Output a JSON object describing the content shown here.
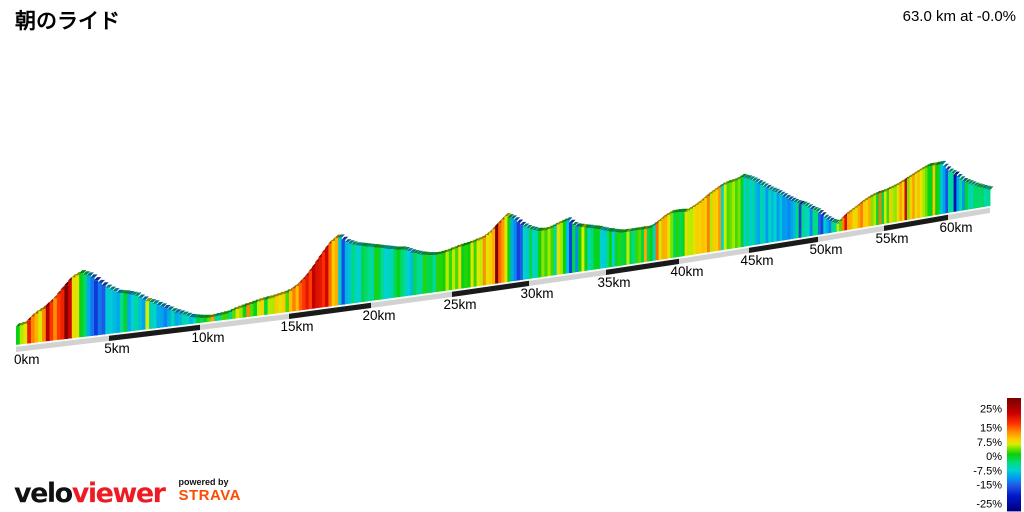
{
  "header": {
    "title": "朝のライド",
    "stats": "63.0 km at -0.0%"
  },
  "chart_data": {
    "type": "area",
    "title": "朝のライド",
    "subtitle": "63.0 km at -0.0%",
    "x_unit": "km",
    "total_distance_km": 63.0,
    "x_tick_km": [
      0,
      5,
      10,
      15,
      20,
      25,
      30,
      35,
      40,
      45,
      50,
      55,
      60
    ],
    "x_tick_labels": [
      "0km",
      "5km",
      "10km",
      "15km",
      "20km",
      "25km",
      "30km",
      "35km",
      "40km",
      "45km",
      "50km",
      "55km",
      "60km"
    ],
    "elevation_profile": {
      "note": "relative elevation above rising baseline, as rendered (px), sampled every 0.5 km from 0 to 63 km",
      "start_km": 0,
      "step_km": 0.5,
      "heights": [
        18,
        20,
        28,
        33,
        40,
        50,
        60,
        64,
        60,
        52,
        45,
        40,
        38,
        35,
        29,
        25,
        20,
        15,
        11,
        7,
        5,
        4,
        5,
        6,
        9,
        11,
        13,
        15,
        16,
        18,
        20,
        25,
        32,
        42,
        53,
        63,
        69,
        62,
        58,
        56,
        54,
        52,
        50,
        48,
        47,
        43,
        40,
        38,
        37,
        38,
        40,
        42,
        43,
        45,
        47,
        52,
        59,
        66,
        62,
        55,
        50,
        47,
        46,
        48,
        51,
        53,
        46,
        44,
        42,
        40,
        37,
        35,
        33,
        33,
        33,
        33,
        33,
        37,
        42,
        45,
        45,
        44,
        47,
        51,
        56,
        60,
        64,
        66,
        67,
        70,
        67,
        63,
        58,
        53,
        49,
        44,
        39,
        35,
        32,
        27,
        23,
        16,
        11,
        8,
        14,
        18,
        22,
        26,
        29,
        31,
        32,
        34,
        36,
        39,
        42,
        45,
        48,
        50,
        50,
        50,
        42,
        37,
        30,
        26,
        22,
        19,
        16
      ]
    },
    "gradient_legend": {
      "labels": [
        "25%",
        "15%",
        "7.5%",
        "0%",
        "-7.5%",
        "-15%",
        "-25%"
      ],
      "values": [
        25,
        15,
        7.5,
        0,
        -7.5,
        -15,
        -25
      ],
      "min_pct": -25,
      "max_pct": 25,
      "colormap_stops": [
        [
          -27,
          "#000080"
        ],
        [
          -20,
          "#0018c8"
        ],
        [
          -15,
          "#2056e8"
        ],
        [
          -11,
          "#00a0f0"
        ],
        [
          -7.5,
          "#00d2d2"
        ],
        [
          -4,
          "#00dc82"
        ],
        [
          0,
          "#0ad00a"
        ],
        [
          3,
          "#7ce400"
        ],
        [
          5,
          "#d8ee00"
        ],
        [
          7.5,
          "#ffc800"
        ],
        [
          11,
          "#ff8a00"
        ],
        [
          15,
          "#ff3000"
        ],
        [
          20,
          "#c80000"
        ],
        [
          27,
          "#780000"
        ]
      ]
    },
    "baseline_colors": {
      "light_segment": "#d2d2d2",
      "dark_segment": "#1a1a1a",
      "top_edge": "#fbfbfb"
    }
  },
  "footer": {
    "velo": "velo",
    "viewer": "viewer",
    "powered_by": "powered by",
    "strava": "STRAVA",
    "colors": {
      "velo": "#111111",
      "viewer": "#ed1c24",
      "strava": "#fc4c02",
      "powered": "#111111"
    }
  }
}
